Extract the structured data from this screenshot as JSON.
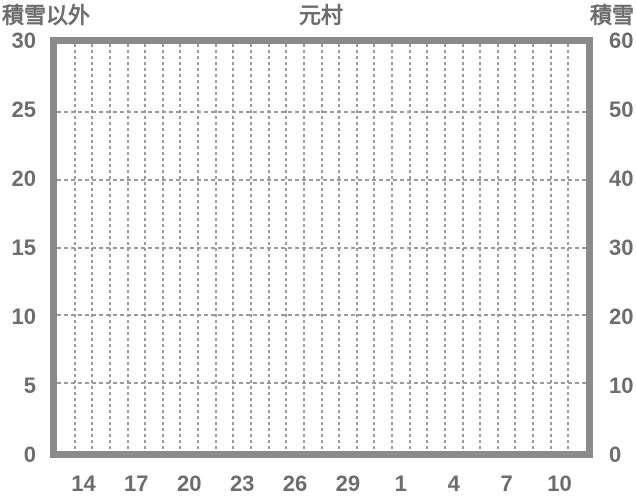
{
  "header": {
    "left_axis_title": "積雪以外",
    "chart_title": "元村",
    "right_axis_title": "積雪"
  },
  "chart_data": {
    "type": "line",
    "title": "元村",
    "series": [],
    "x_axis": {
      "tick_labels": [
        "14",
        "17",
        "20",
        "23",
        "26",
        "29",
        "1",
        "4",
        "7",
        "10"
      ],
      "total_slots": 30,
      "tick_slot_indices": [
        1,
        4,
        7,
        10,
        13,
        16,
        19,
        22,
        25,
        28
      ]
    },
    "left_y_axis": {
      "title": "積雪以外",
      "tick_labels": [
        "30",
        "25",
        "20",
        "15",
        "10",
        "5",
        "0"
      ],
      "range": [
        0,
        30
      ],
      "tick_step": 5
    },
    "right_y_axis": {
      "title": "積雪",
      "tick_labels": [
        "60",
        "50",
        "40",
        "30",
        "20",
        "10",
        "0"
      ],
      "range": [
        0,
        60
      ],
      "tick_step": 10
    },
    "grid": {
      "vertical_lines": 29,
      "horizontal_lines": 5,
      "style": "dashed",
      "legend": "none"
    }
  },
  "colors": {
    "text": "#6d6d6d",
    "plot_border": "#8a8a8a",
    "gridline": "#9b9b9b",
    "background": "#ffffff"
  }
}
